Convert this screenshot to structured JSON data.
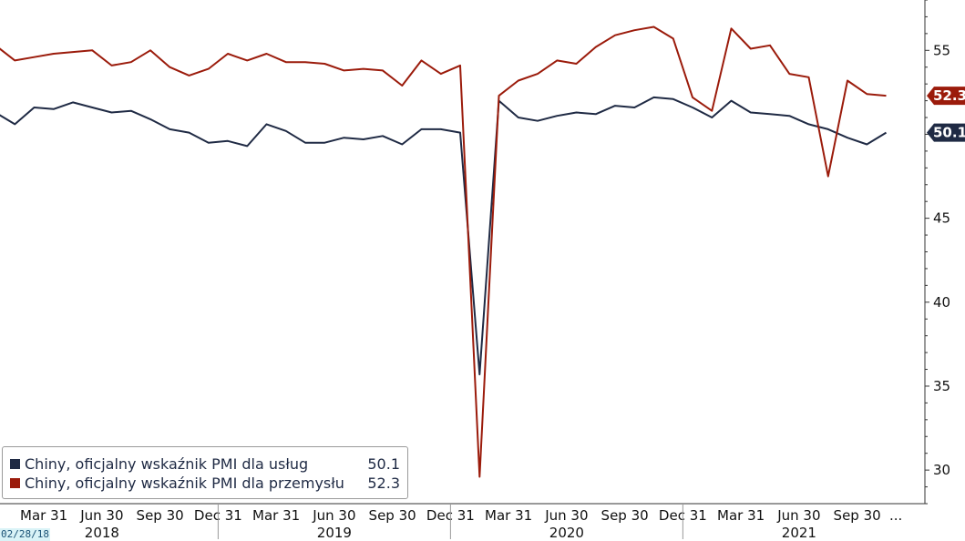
{
  "chart_data": {
    "type": "line",
    "ylim": [
      28,
      58
    ],
    "y_ticks": [
      30,
      35,
      40,
      45,
      50,
      55
    ],
    "y_axis_side": "right",
    "grid": false,
    "legend_placement": "bottom-left",
    "x_tick_labels": [
      "Mar 31",
      "Jun 30",
      "Sep 30",
      "Dec 31",
      "Mar 31",
      "Jun 30",
      "Sep 30",
      "Dec 31",
      "Mar 31",
      "Jun 30",
      "Sep 30",
      "Dec 31",
      "Mar 31",
      "Jun 30",
      "Sep 30",
      "..."
    ],
    "x_tick_index": [
      2.5,
      5.5,
      8.5,
      11.5,
      14.5,
      17.5,
      20.5,
      23.5,
      26.5,
      29.5,
      32.5,
      35.5,
      38.5,
      41.5,
      44.5,
      46.5
    ],
    "year_labels": [
      {
        "label": "2018",
        "index": 5.5
      },
      {
        "label": "2019",
        "index": 17.5
      },
      {
        "label": "2020",
        "index": 29.5
      },
      {
        "label": "2021",
        "index": 41.5
      }
    ],
    "year_separator_index": [
      -0.5,
      11.5,
      23.5,
      35.5
    ],
    "series": [
      {
        "name": "Chiny, oficjalny wskaźnik PMI dla usług",
        "color": "#1f2a44",
        "last_value": "50.1",
        "values": [
          51.3,
          50.6,
          51.6,
          51.5,
          51.9,
          51.6,
          51.3,
          51.4,
          50.9,
          50.3,
          50.1,
          49.5,
          49.6,
          49.3,
          50.6,
          50.2,
          49.5,
          49.5,
          49.8,
          49.7,
          49.9,
          49.4,
          50.3,
          50.3,
          50.1,
          35.7,
          52.0,
          51.0,
          50.8,
          51.1,
          51.3,
          51.2,
          51.7,
          51.6,
          52.2,
          52.1,
          51.6,
          51.0,
          52.0,
          51.3,
          51.2,
          51.1,
          50.6,
          50.3,
          49.8,
          49.4,
          50.1
        ]
      },
      {
        "name": "Chiny, oficjalny wskaźnik PMI dla przemysłu",
        "color": "#9b1b0b",
        "last_value": "52.3",
        "values": [
          55.3,
          54.4,
          54.6,
          54.8,
          54.9,
          55.0,
          54.1,
          54.3,
          55.0,
          54.0,
          53.5,
          53.9,
          54.8,
          54.4,
          54.8,
          54.3,
          54.3,
          54.2,
          53.8,
          53.9,
          53.8,
          52.9,
          54.4,
          53.6,
          54.1,
          29.6,
          52.3,
          53.2,
          53.6,
          54.4,
          54.2,
          55.2,
          55.9,
          56.2,
          56.4,
          55.7,
          52.2,
          51.4,
          56.3,
          55.1,
          55.3,
          53.6,
          53.4,
          47.5,
          53.2,
          52.4,
          52.3
        ]
      }
    ]
  },
  "legend": {
    "items": [
      {
        "label": "Chiny, oficjalny wskaźnik PMI dla usług",
        "value": "50.1",
        "color": "#1f2a44"
      },
      {
        "label": "Chiny, oficjalny wskaźnik PMI dla przemysłu",
        "value": "52.3",
        "color": "#9b1b0b"
      }
    ]
  },
  "footer": {
    "date_stamp": "02/28/18"
  }
}
